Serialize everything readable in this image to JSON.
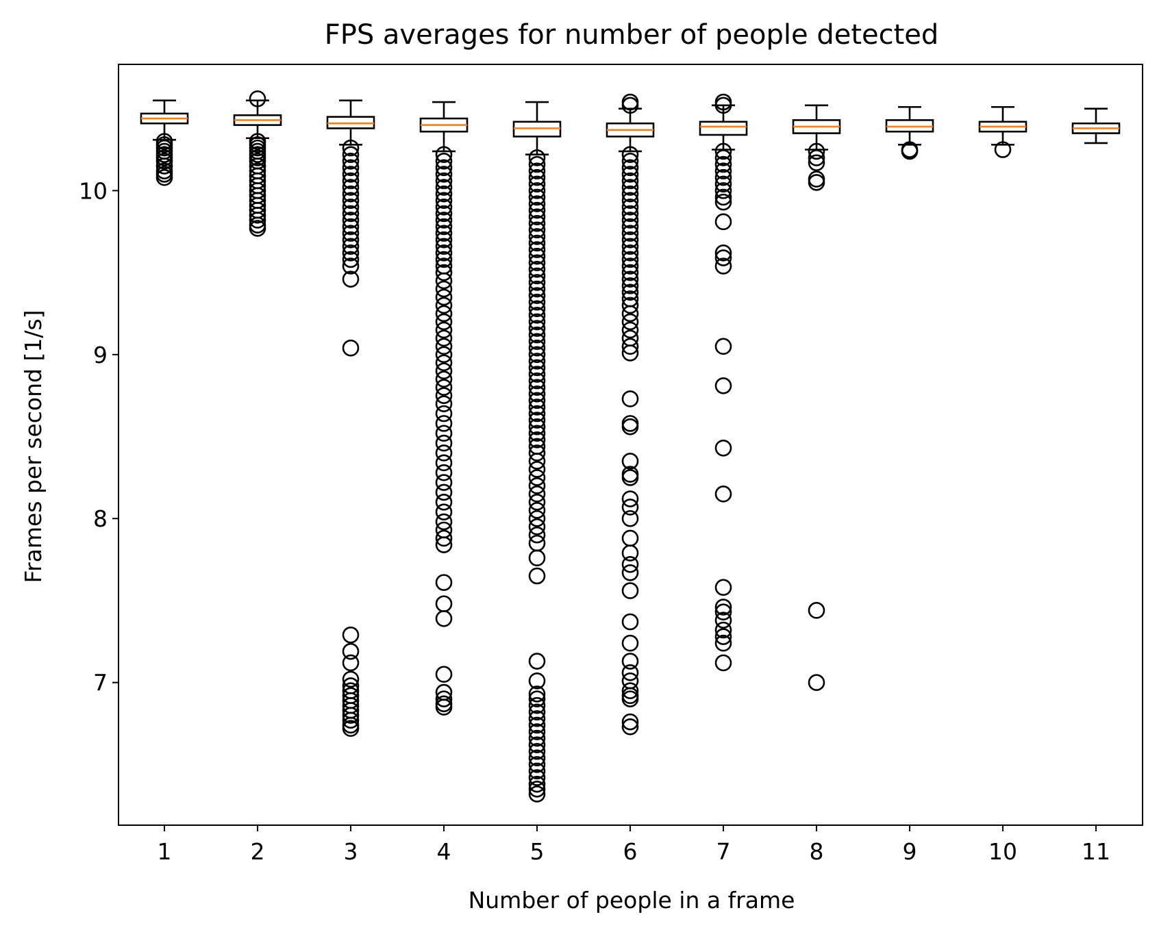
{
  "chart_data": {
    "type": "boxplot",
    "title": "FPS averages for number of people detected",
    "xlabel": "Number of people in a frame",
    "ylabel": "Frames per second [1/s]",
    "categories": [
      "1",
      "2",
      "3",
      "4",
      "5",
      "6",
      "7",
      "8",
      "9",
      "10",
      "11"
    ],
    "ylim": [
      6.13,
      10.77
    ],
    "yticks": [
      7,
      8,
      9,
      10
    ],
    "ytick_labels": [
      "7",
      "8",
      "9",
      "10"
    ],
    "grid": false,
    "colors": {
      "box": "#000000",
      "median": "#ff7f0e",
      "flier": "#000000"
    },
    "boxes": [
      {
        "category": "1",
        "whisker_low": 10.31,
        "q1": 10.41,
        "median": 10.44,
        "q3": 10.47,
        "whisker_high": 10.55,
        "fliers": [
          10.3,
          10.28,
          10.26,
          10.24,
          10.22,
          10.2,
          10.18,
          10.15,
          10.12,
          10.1,
          10.08
        ]
      },
      {
        "category": "2",
        "whisker_low": 10.32,
        "q1": 10.4,
        "median": 10.43,
        "q3": 10.46,
        "whisker_high": 10.55,
        "fliers": [
          10.56,
          10.3,
          10.28,
          10.26,
          10.24,
          10.22,
          10.2,
          10.18,
          10.15,
          10.12,
          10.09,
          10.06,
          10.03,
          10.0,
          9.97,
          9.94,
          9.91,
          9.88,
          9.85,
          9.82,
          9.79,
          9.77
        ]
      },
      {
        "category": "3",
        "whisker_low": 10.28,
        "q1": 10.38,
        "median": 10.41,
        "q3": 10.45,
        "whisker_high": 10.55,
        "fliers": [
          10.26,
          10.22,
          10.18,
          10.14,
          10.1,
          10.06,
          10.02,
          9.98,
          9.94,
          9.9,
          9.86,
          9.82,
          9.78,
          9.74,
          9.7,
          9.66,
          9.62,
          9.58,
          9.54,
          9.46,
          9.04,
          7.29,
          7.19,
          7.12,
          7.02,
          6.98,
          6.95,
          6.92,
          6.89,
          6.86,
          6.83,
          6.8,
          6.77,
          6.74,
          6.72
        ]
      },
      {
        "category": "4",
        "whisker_low": 10.24,
        "q1": 10.36,
        "median": 10.4,
        "q3": 10.44,
        "whisker_high": 10.54,
        "fliers": [
          10.22,
          10.18,
          10.14,
          10.1,
          10.06,
          10.02,
          9.98,
          9.94,
          9.9,
          9.86,
          9.82,
          9.78,
          9.74,
          9.7,
          9.66,
          9.62,
          9.58,
          9.54,
          9.5,
          9.45,
          9.4,
          9.35,
          9.3,
          9.25,
          9.2,
          9.15,
          9.1,
          9.05,
          9.0,
          8.95,
          8.9,
          8.85,
          8.8,
          8.75,
          8.7,
          8.64,
          8.58,
          8.52,
          8.46,
          8.4,
          8.34,
          8.28,
          8.22,
          8.16,
          8.1,
          8.04,
          7.98,
          7.93,
          7.88,
          7.84,
          7.61,
          7.48,
          7.39,
          7.05,
          6.94,
          6.9,
          6.87,
          6.85
        ]
      },
      {
        "category": "5",
        "whisker_low": 10.22,
        "q1": 10.33,
        "median": 10.38,
        "q3": 10.42,
        "whisker_high": 10.54,
        "fliers": [
          10.2,
          10.16,
          10.12,
          10.08,
          10.04,
          10.0,
          9.96,
          9.92,
          9.88,
          9.84,
          9.8,
          9.76,
          9.72,
          9.68,
          9.64,
          9.6,
          9.56,
          9.52,
          9.48,
          9.44,
          9.4,
          9.36,
          9.32,
          9.28,
          9.24,
          9.2,
          9.16,
          9.12,
          9.08,
          9.04,
          9.0,
          8.96,
          8.92,
          8.88,
          8.84,
          8.8,
          8.76,
          8.72,
          8.68,
          8.64,
          8.6,
          8.56,
          8.52,
          8.48,
          8.44,
          8.4,
          8.35,
          8.3,
          8.25,
          8.2,
          8.15,
          8.1,
          8.05,
          8.0,
          7.95,
          7.9,
          7.85,
          7.76,
          7.65,
          7.13,
          7.01,
          6.93,
          6.9,
          6.86,
          6.82,
          6.78,
          6.74,
          6.7,
          6.66,
          6.62,
          6.58,
          6.54,
          6.5,
          6.46,
          6.42,
          6.38,
          6.35,
          6.32
        ]
      },
      {
        "category": "6",
        "whisker_low": 10.24,
        "q1": 10.33,
        "median": 10.37,
        "q3": 10.41,
        "whisker_high": 10.5,
        "fliers": [
          10.54,
          10.52,
          10.22,
          10.18,
          10.14,
          10.1,
          10.06,
          10.02,
          9.98,
          9.94,
          9.9,
          9.86,
          9.82,
          9.78,
          9.74,
          9.7,
          9.66,
          9.62,
          9.58,
          9.54,
          9.5,
          9.46,
          9.42,
          9.38,
          9.34,
          9.3,
          9.25,
          9.2,
          9.15,
          9.1,
          9.05,
          9.01,
          8.73,
          8.58,
          8.56,
          8.35,
          8.27,
          8.25,
          8.12,
          8.07,
          8.0,
          7.88,
          7.79,
          7.72,
          7.67,
          7.56,
          7.37,
          7.24,
          7.13,
          7.06,
          7.01,
          6.95,
          6.92,
          6.9,
          6.76,
          6.73
        ]
      },
      {
        "category": "7",
        "whisker_low": 10.25,
        "q1": 10.34,
        "median": 10.39,
        "q3": 10.42,
        "whisker_high": 10.52,
        "fliers": [
          10.54,
          10.52,
          10.24,
          10.2,
          10.16,
          10.12,
          10.08,
          10.04,
          10.0,
          9.96,
          9.93,
          9.81,
          9.62,
          9.59,
          9.54,
          9.05,
          8.81,
          8.43,
          8.15,
          7.58,
          7.46,
          7.43,
          7.38,
          7.32,
          7.28,
          7.24,
          7.12
        ]
      },
      {
        "category": "8",
        "whisker_low": 10.25,
        "q1": 10.35,
        "median": 10.39,
        "q3": 10.43,
        "whisker_high": 10.52,
        "fliers": [
          10.24,
          10.2,
          10.17,
          10.07,
          10.05,
          7.44,
          7.0
        ]
      },
      {
        "category": "9",
        "whisker_low": 10.28,
        "q1": 10.36,
        "median": 10.39,
        "q3": 10.43,
        "whisker_high": 10.51,
        "fliers": [
          10.25,
          10.24
        ]
      },
      {
        "category": "10",
        "whisker_low": 10.28,
        "q1": 10.36,
        "median": 10.39,
        "q3": 10.42,
        "whisker_high": 10.51,
        "fliers": [
          10.25
        ]
      },
      {
        "category": "11",
        "whisker_low": 10.29,
        "q1": 10.35,
        "median": 10.38,
        "q3": 10.41,
        "whisker_high": 10.5,
        "fliers": []
      }
    ]
  }
}
